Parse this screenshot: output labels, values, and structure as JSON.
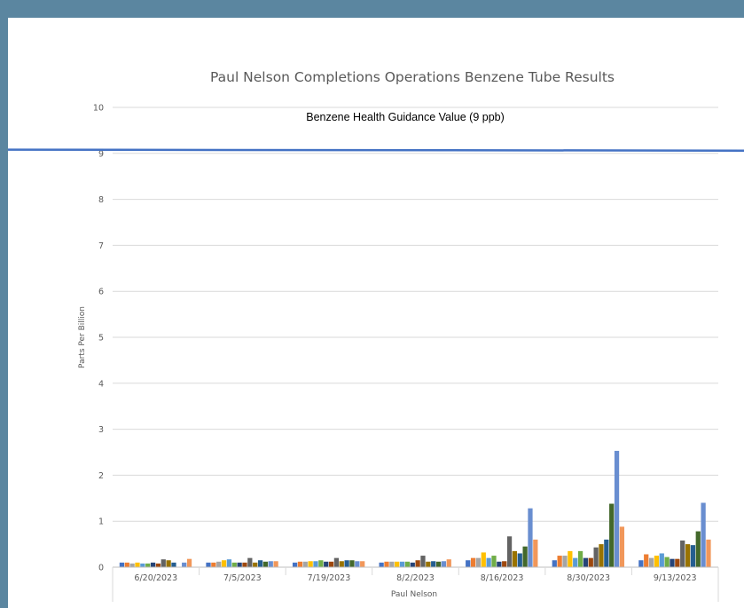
{
  "chart_data": {
    "type": "bar",
    "title": "Paul Nelson Completions Operations Benzene Tube Results",
    "ylabel": "Parts Per Billion",
    "xlabel": "Paul Nelson",
    "ylim": [
      0,
      10
    ],
    "yticks": [
      "0",
      "1",
      "2",
      "3",
      "4",
      "5",
      "6",
      "7",
      "8",
      "9",
      "10"
    ],
    "grid": true,
    "categories": [
      "6/20/2023",
      "7/5/2023",
      "7/19/2023",
      "8/2/2023",
      "8/16/2023",
      "8/30/2023",
      "9/13/2023"
    ],
    "series": [
      {
        "color": "#4472c4",
        "values": [
          0.1,
          0.1,
          0.1,
          0.1,
          0.15,
          0.15,
          0.15
        ]
      },
      {
        "color": "#ed7d31",
        "values": [
          0.1,
          0.1,
          0.12,
          0.12,
          0.2,
          0.25,
          0.28
        ]
      },
      {
        "color": "#a5a5a5",
        "values": [
          0.08,
          0.12,
          0.12,
          0.12,
          0.2,
          0.25,
          0.2
        ]
      },
      {
        "color": "#ffc000",
        "values": [
          0.1,
          0.15,
          0.13,
          0.12,
          0.32,
          0.35,
          0.25
        ]
      },
      {
        "color": "#5b9bd5",
        "values": [
          0.08,
          0.17,
          0.13,
          0.12,
          0.2,
          0.2,
          0.3
        ]
      },
      {
        "color": "#70ad47",
        "values": [
          0.08,
          0.1,
          0.15,
          0.12,
          0.25,
          0.35,
          0.22
        ]
      },
      {
        "color": "#264478",
        "values": [
          0.1,
          0.1,
          0.12,
          0.1,
          0.12,
          0.2,
          0.18
        ]
      },
      {
        "color": "#9e480e",
        "values": [
          0.08,
          0.1,
          0.12,
          0.15,
          0.13,
          0.2,
          0.18
        ]
      },
      {
        "color": "#636363",
        "values": [
          0.17,
          0.2,
          0.2,
          0.25,
          0.67,
          0.43,
          0.58
        ]
      },
      {
        "color": "#997300",
        "values": [
          0.15,
          0.1,
          0.13,
          0.12,
          0.35,
          0.5,
          0.5
        ]
      },
      {
        "color": "#255e91",
        "values": [
          0.1,
          0.15,
          0.15,
          0.13,
          0.3,
          0.6,
          0.48
        ]
      },
      {
        "color": "#43682b",
        "values": [
          0.0,
          0.12,
          0.15,
          0.12,
          0.45,
          1.38,
          0.78
        ]
      },
      {
        "color": "#698ed0",
        "values": [
          0.1,
          0.13,
          0.13,
          0.13,
          1.28,
          2.53,
          1.4
        ]
      },
      {
        "color": "#f1975a",
        "values": [
          0.18,
          0.13,
          0.13,
          0.17,
          0.6,
          0.88,
          0.6
        ]
      }
    ],
    "reference_line": {
      "label": "Benzene Health Guidance Value (9 ppb)",
      "y_start": 9.08,
      "y_end": 9.06,
      "color": "#4472c4"
    }
  }
}
